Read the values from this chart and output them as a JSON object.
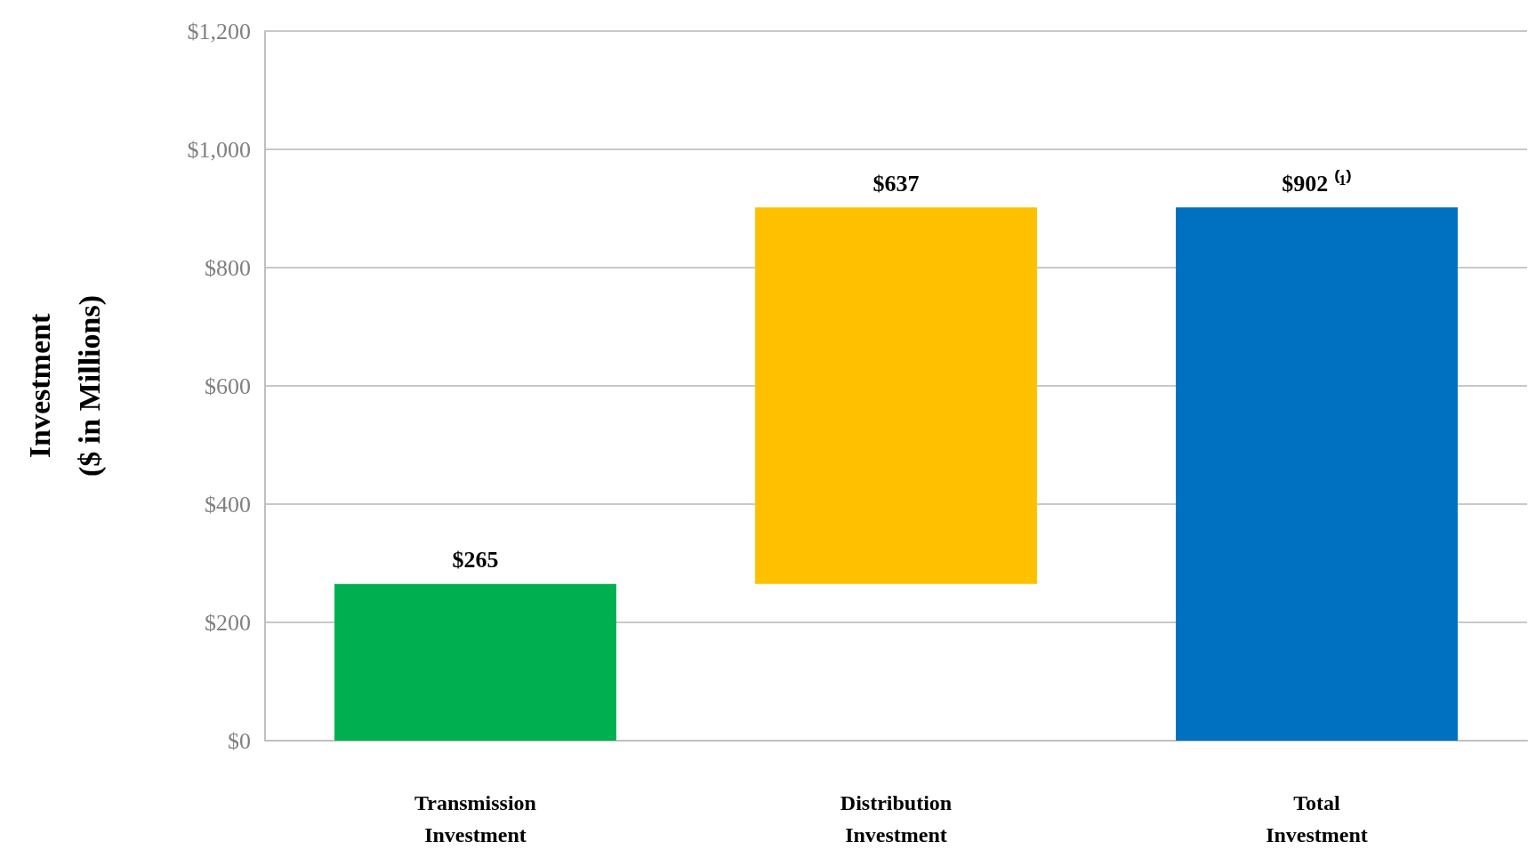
{
  "chart_data": {
    "type": "bar",
    "ylabel": "Investment\n($ in Millions)",
    "categories": [
      "Transmission\nInvestment",
      "Distribution\nInvestment",
      "Total\nInvestment"
    ],
    "values": [
      265,
      637,
      902
    ],
    "base": [
      0,
      265,
      0
    ],
    "colors": [
      "#00b050",
      "#ffc000",
      "#0070c0"
    ],
    "value_labels": [
      "$265",
      "$637",
      "$902 ⁽¹⁾"
    ],
    "ylim": [
      0,
      1200
    ],
    "yticks": [
      {
        "value": 0,
        "label": "$0"
      },
      {
        "value": 200,
        "label": "$200"
      },
      {
        "value": 400,
        "label": "$400"
      },
      {
        "value": 600,
        "label": "$600"
      },
      {
        "value": 800,
        "label": "$800"
      },
      {
        "value": 1000,
        "label": "$1,000"
      },
      {
        "value": 1200,
        "label": "$1,200"
      }
    ],
    "grid": "y"
  }
}
